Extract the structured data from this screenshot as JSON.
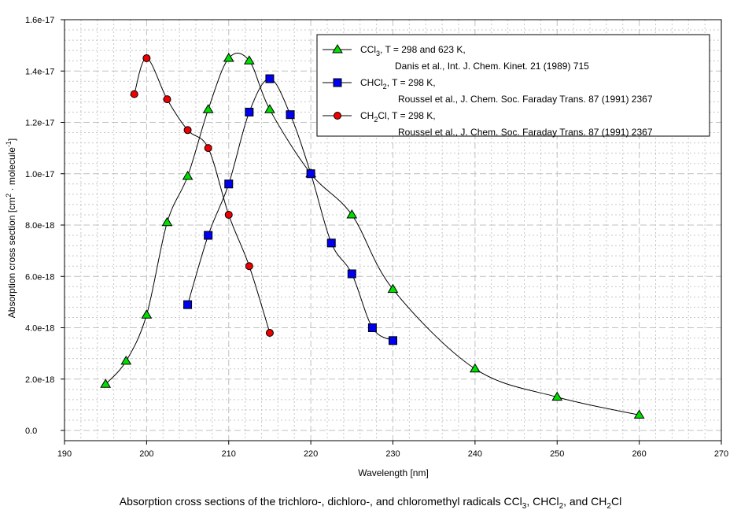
{
  "chart_data": {
    "type": "line",
    "title": "",
    "xlabel": "Wavelength [nm]",
    "ylabel": "Absorption cross section [cm^2 · molecule^-1]",
    "ylabel_parts": {
      "pre": "Absorption cross section [cm",
      "sup1": "2",
      "mid": " · molecule",
      "sup2": "-1",
      "post": "]"
    },
    "xlim": [
      190,
      270
    ],
    "ylim": [
      0,
      1.6e-17
    ],
    "xticks": [
      190,
      200,
      210,
      220,
      230,
      240,
      250,
      260,
      270
    ],
    "xtick_labels": [
      "190",
      "200",
      "210",
      "220",
      "230",
      "240",
      "250",
      "260",
      "270"
    ],
    "yticks": [
      0,
      2e-18,
      4e-18,
      6e-18,
      8e-18,
      1e-17,
      1.2e-17,
      1.4e-17,
      1.6e-17
    ],
    "ytick_labels": [
      "0.0",
      "2.0e-18",
      "4.0e-18",
      "6.0e-18",
      "8.0e-18",
      "1.0e-17",
      "1.2e-17",
      "1.4e-17",
      "1.6e-17"
    ],
    "grid": true,
    "legend_position": "top-right",
    "series": [
      {
        "name": "CCl3",
        "marker": "triangle",
        "color": "#00dd00",
        "legend_line1": {
          "species": "CCl",
          "sub": "3",
          "rest": ",  T = 298 and 623 K,"
        },
        "legend_line2": "Danis et al., Int. J. Chem. Kinet. 21 (1989) 715",
        "x": [
          195,
          197.5,
          200,
          202.5,
          205,
          207.5,
          210,
          212.5,
          215,
          220,
          225,
          230,
          240,
          250,
          260
        ],
        "y": [
          1.8e-18,
          2.7e-18,
          4.5e-18,
          8.1e-18,
          9.9e-18,
          1.25e-17,
          1.45e-17,
          1.44e-17,
          1.25e-17,
          1e-17,
          8.4e-18,
          5.5e-18,
          2.4e-18,
          1.3e-18,
          6e-19
        ]
      },
      {
        "name": "CHCl2",
        "marker": "square",
        "color": "#0000ee",
        "legend_line1": {
          "species": "CHCl",
          "sub": "2",
          "rest": ", T = 298 K,"
        },
        "legend_line2": "Roussel et al., J. Chem. Soc. Faraday Trans. 87 (1991) 2367",
        "x": [
          205,
          207.5,
          210,
          212.5,
          215,
          217.5,
          220,
          222.5,
          225,
          227.5,
          230
        ],
        "y": [
          4.9e-18,
          7.6e-18,
          9.6e-18,
          1.24e-17,
          1.37e-17,
          1.23e-17,
          1e-17,
          7.3e-18,
          6.1e-18,
          4e-18,
          3.5e-18
        ]
      },
      {
        "name": "CH2Cl",
        "marker": "circle",
        "color": "#ee0000",
        "legend_line1": {
          "species": "CH",
          "sub": "2",
          "rest": "Cl, T = 298 K,"
        },
        "legend_line2": "Roussel et al., J. Chem. Soc. Faraday Trans. 87 (1991) 2367",
        "x": [
          198.5,
          200,
          202.5,
          205,
          207.5,
          210,
          212.5,
          215
        ],
        "y": [
          1.31e-17,
          1.45e-17,
          1.29e-17,
          1.17e-17,
          1.1e-17,
          8.4e-18,
          6.4e-18,
          3.8e-18
        ]
      }
    ]
  },
  "caption": {
    "text1": "Absorption cross sections of the trichloro-, dichloro-, and chloromethyl radicals CCl",
    "sub1": "3",
    "text2": ", CHCl",
    "sub2": "2",
    "text3": ", and CH",
    "sub3": "2",
    "text4": "Cl"
  }
}
